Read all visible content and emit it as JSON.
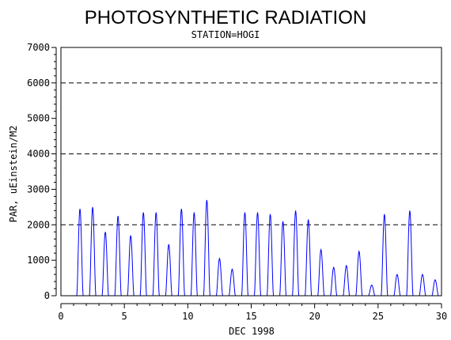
{
  "chart_data": {
    "type": "line",
    "title": "PHOTOSYNTHETIC RADIATION",
    "subtitle": "STATION=HOGI",
    "xlabel": "DEC 1998",
    "ylabel": "PAR, uEinstein/M2",
    "xlim": [
      0,
      30
    ],
    "ylim": [
      0,
      7000
    ],
    "x_ticks": [
      0,
      5,
      10,
      15,
      20,
      25,
      30
    ],
    "x_tick_labels": [
      "0",
      "5",
      "10",
      "15",
      "20",
      "25",
      "30"
    ],
    "y_ticks": [
      0,
      1000,
      2000,
      3000,
      4000,
      5000,
      6000,
      7000
    ],
    "y_tick_labels": [
      "0",
      "1000",
      "2000",
      "3000",
      "4000",
      "5000",
      "6000",
      "7000"
    ],
    "reference_lines": [
      2000,
      4000,
      6000
    ],
    "reference_line_style": "dashed",
    "series": [
      {
        "color": "#0000ff",
        "daily_peaks": [
          {
            "day": 1,
            "peak": 2450
          },
          {
            "day": 2,
            "peak": 2500
          },
          {
            "day": 3,
            "peak": 1800
          },
          {
            "day": 4,
            "peak": 2250
          },
          {
            "day": 5,
            "peak": 1700
          },
          {
            "day": 6,
            "peak": 2350
          },
          {
            "day": 7,
            "peak": 2350
          },
          {
            "day": 8,
            "peak": 1450
          },
          {
            "day": 9,
            "peak": 2450
          },
          {
            "day": 10,
            "peak": 2350
          },
          {
            "day": 11,
            "peak": 2700
          },
          {
            "day": 12,
            "peak": 1050
          },
          {
            "day": 13,
            "peak": 750
          },
          {
            "day": 14,
            "peak": 2350
          },
          {
            "day": 15,
            "peak": 2350
          },
          {
            "day": 16,
            "peak": 2300
          },
          {
            "day": 17,
            "peak": 2100
          },
          {
            "day": 18,
            "peak": 2400
          },
          {
            "day": 19,
            "peak": 2150
          },
          {
            "day": 20,
            "peak": 1300
          },
          {
            "day": 21,
            "peak": 800
          },
          {
            "day": 22,
            "peak": 850
          },
          {
            "day": 23,
            "peak": 1250
          },
          {
            "day": 24,
            "peak": 300
          },
          {
            "day": 25,
            "peak": 2300
          },
          {
            "day": 26,
            "peak": 600
          },
          {
            "day": 27,
            "peak": 2400
          },
          {
            "day": 28,
            "peak": 600
          },
          {
            "day": 29,
            "peak": 450
          }
        ]
      }
    ]
  }
}
